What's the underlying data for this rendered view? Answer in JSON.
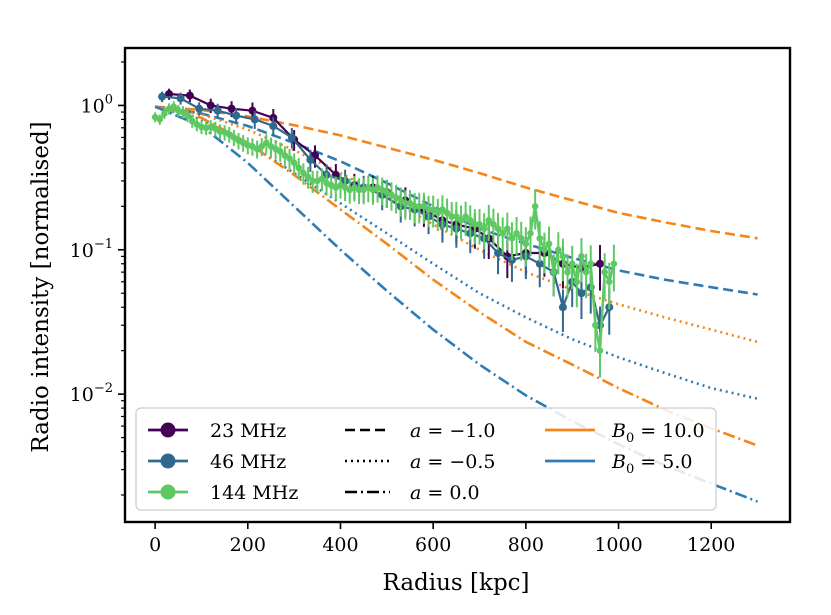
{
  "chart_data": {
    "type": "line",
    "title": "",
    "xlabel": "Radius [kpc]",
    "ylabel": "Radio intensity [normalised]",
    "xlim": [
      -65,
      1370
    ],
    "ylim": [
      0.0013,
      2.5
    ],
    "yscale": "log",
    "x_ticks": [
      {
        "value": 0,
        "label": "0"
      },
      {
        "value": 200,
        "label": "200"
      },
      {
        "value": 400,
        "label": "400"
      },
      {
        "value": 600,
        "label": "600"
      },
      {
        "value": 800,
        "label": "800"
      },
      {
        "value": 1000,
        "label": "1000"
      },
      {
        "value": 1200,
        "label": "1200"
      }
    ],
    "y_ticks": [
      {
        "value": 1,
        "base": "10",
        "exp": "0"
      },
      {
        "value": 0.1,
        "base": "10",
        "exp": "−1"
      },
      {
        "value": 0.01,
        "base": "10",
        "exp": "−2"
      }
    ],
    "model_series": [
      {
        "name": "B0=10.0, a=-1.0",
        "color": "#f58518",
        "dash": "dashed",
        "x": [
          0,
          100,
          200,
          300,
          400,
          500,
          600,
          700,
          800,
          900,
          1000,
          1100,
          1200,
          1300
        ],
        "y": [
          0.98,
          0.93,
          0.84,
          0.73,
          0.62,
          0.51,
          0.42,
          0.34,
          0.27,
          0.22,
          0.18,
          0.155,
          0.135,
          0.12
        ]
      },
      {
        "name": "B0=5.0, a=-1.0",
        "color": "#2f7cb4",
        "dash": "dashed",
        "x": [
          0,
          100,
          200,
          300,
          400,
          500,
          600,
          700,
          800,
          900,
          1000,
          1100,
          1200,
          1300
        ],
        "y": [
          0.98,
          0.88,
          0.72,
          0.55,
          0.41,
          0.29,
          0.2,
          0.14,
          0.11,
          0.088,
          0.072,
          0.062,
          0.055,
          0.049
        ]
      },
      {
        "name": "B0=10.0, a=-0.5",
        "color": "#f58518",
        "dash": "dotted",
        "x": [
          0,
          100,
          200,
          300,
          400,
          500,
          600,
          700,
          800,
          900,
          1000,
          1100,
          1200,
          1300
        ],
        "y": [
          0.98,
          0.87,
          0.68,
          0.49,
          0.34,
          0.23,
          0.15,
          0.1,
          0.07,
          0.053,
          0.042,
          0.034,
          0.028,
          0.023
        ]
      },
      {
        "name": "B0=5.0, a=-0.5",
        "color": "#2f7cb4",
        "dash": "dotted",
        "x": [
          0,
          100,
          200,
          300,
          400,
          500,
          600,
          700,
          800,
          900,
          1000,
          1100,
          1200,
          1300
        ],
        "y": [
          0.98,
          0.8,
          0.55,
          0.34,
          0.21,
          0.13,
          0.08,
          0.05,
          0.034,
          0.024,
          0.018,
          0.014,
          0.011,
          0.0093
        ]
      },
      {
        "name": "B0=10.0, a=0.0",
        "color": "#f58518",
        "dash": "dashdot",
        "x": [
          0,
          100,
          200,
          300,
          400,
          500,
          600,
          700,
          800,
          900,
          1000,
          1100,
          1200,
          1300
        ],
        "y": [
          0.98,
          0.82,
          0.55,
          0.33,
          0.19,
          0.11,
          0.062,
          0.037,
          0.023,
          0.016,
          0.011,
          0.0078,
          0.0058,
          0.0044
        ]
      },
      {
        "name": "B0=5.0, a=0.0",
        "color": "#2f7cb4",
        "dash": "dashdot",
        "x": [
          0,
          100,
          200,
          300,
          400,
          500,
          600,
          700,
          800,
          900,
          1000,
          1100,
          1200,
          1300
        ],
        "y": [
          0.98,
          0.72,
          0.4,
          0.2,
          0.1,
          0.052,
          0.028,
          0.016,
          0.0098,
          0.0065,
          0.0045,
          0.0032,
          0.0024,
          0.0018
        ]
      }
    ],
    "data_series": [
      {
        "name": "23 MHz",
        "color": "#440154",
        "x": [
          30,
          75,
          120,
          165,
          210,
          255,
          300,
          345,
          390,
          430,
          470,
          500,
          540,
          580,
          620,
          650,
          690,
          720,
          760,
          800,
          840,
          880,
          920,
          960
        ],
        "y": [
          1.2,
          1.17,
          1.0,
          0.95,
          0.92,
          0.82,
          0.58,
          0.45,
          0.33,
          0.28,
          0.27,
          0.25,
          0.22,
          0.19,
          0.16,
          0.15,
          0.14,
          0.12,
          0.09,
          0.095,
          0.095,
          0.08,
          0.075,
          0.08
        ]
      },
      {
        "name": "46 MHz",
        "color": "#31688e",
        "x": [
          15,
          55,
          95,
          135,
          175,
          215,
          255,
          295,
          335,
          370,
          410,
          450,
          490,
          530,
          560,
          590,
          620,
          650,
          680,
          710,
          740,
          770,
          800,
          830,
          860,
          880,
          900,
          920,
          940,
          960,
          980
        ],
        "y": [
          1.15,
          1.12,
          0.95,
          0.92,
          0.85,
          0.8,
          0.72,
          0.6,
          0.42,
          0.33,
          0.3,
          0.27,
          0.24,
          0.2,
          0.19,
          0.17,
          0.15,
          0.14,
          0.13,
          0.12,
          0.095,
          0.085,
          0.09,
          0.08,
          0.07,
          0.04,
          0.06,
          0.05,
          0.055,
          0.03,
          0.04
        ]
      },
      {
        "name": "144 MHz",
        "color": "#5ec962",
        "x": [
          0,
          10,
          20,
          30,
          40,
          50,
          60,
          70,
          80,
          90,
          100,
          110,
          120,
          130,
          140,
          150,
          160,
          170,
          180,
          190,
          200,
          210,
          220,
          230,
          240,
          250,
          260,
          270,
          280,
          290,
          300,
          310,
          320,
          330,
          340,
          350,
          360,
          370,
          380,
          390,
          400,
          410,
          420,
          430,
          440,
          450,
          460,
          470,
          480,
          490,
          500,
          510,
          520,
          530,
          540,
          550,
          560,
          570,
          580,
          590,
          600,
          610,
          620,
          630,
          640,
          650,
          660,
          670,
          680,
          690,
          700,
          710,
          720,
          730,
          740,
          750,
          760,
          770,
          780,
          790,
          800,
          810,
          820,
          830,
          840,
          850,
          860,
          870,
          880,
          890,
          900,
          910,
          920,
          930,
          940,
          950,
          960,
          970,
          980,
          990
        ],
        "y": [
          0.83,
          0.8,
          0.88,
          0.95,
          0.98,
          0.92,
          0.9,
          0.85,
          0.78,
          0.74,
          0.71,
          0.7,
          0.71,
          0.69,
          0.66,
          0.65,
          0.63,
          0.6,
          0.57,
          0.55,
          0.53,
          0.52,
          0.5,
          0.52,
          0.55,
          0.52,
          0.5,
          0.48,
          0.45,
          0.43,
          0.4,
          0.37,
          0.34,
          0.32,
          0.3,
          0.3,
          0.31,
          0.29,
          0.28,
          0.27,
          0.28,
          0.27,
          0.26,
          0.27,
          0.26,
          0.26,
          0.27,
          0.26,
          0.27,
          0.26,
          0.25,
          0.24,
          0.23,
          0.22,
          0.21,
          0.21,
          0.2,
          0.2,
          0.2,
          0.19,
          0.19,
          0.18,
          0.19,
          0.18,
          0.17,
          0.17,
          0.16,
          0.17,
          0.16,
          0.15,
          0.15,
          0.14,
          0.16,
          0.15,
          0.14,
          0.13,
          0.14,
          0.12,
          0.13,
          0.12,
          0.11,
          0.13,
          0.2,
          0.12,
          0.1,
          0.11,
          0.07,
          0.1,
          0.09,
          0.07,
          0.08,
          0.06,
          0.09,
          0.07,
          0.08,
          0.03,
          0.02,
          0.07,
          0.06,
          0.08
        ]
      }
    ],
    "legend": {
      "position": "bottom-left",
      "col1": [
        {
          "label": "23 MHz",
          "color": "#440154"
        },
        {
          "label": "46 MHz",
          "color": "#31688e"
        },
        {
          "label": "144 MHz",
          "color": "#5ec962"
        }
      ],
      "col2": [
        {
          "var": "a",
          "rest": " = −1.0",
          "dash": "dashed"
        },
        {
          "var": "a",
          "rest": " = −0.5",
          "dash": "dotted"
        },
        {
          "var": "a",
          "rest": " = 0.0",
          "dash": "dashdot"
        }
      ],
      "col3": [
        {
          "var": "B",
          "sub": "0",
          "rest": " = 10.0",
          "color": "#f58518"
        },
        {
          "var": "B",
          "sub": "0",
          "rest": " = 5.0",
          "color": "#2f7cb4"
        }
      ]
    }
  }
}
